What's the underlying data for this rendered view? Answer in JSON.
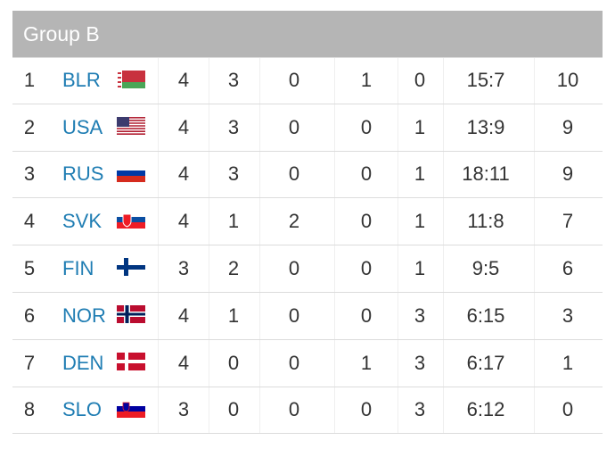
{
  "table": {
    "title": "Group B",
    "rows": [
      [
        1,
        "BLR",
        4,
        3,
        0,
        1,
        0,
        "15:7",
        10
      ],
      [
        2,
        "USA",
        4,
        3,
        0,
        0,
        1,
        "13:9",
        9
      ],
      [
        3,
        "RUS",
        4,
        3,
        0,
        0,
        1,
        "18:11",
        9
      ],
      [
        4,
        "SVK",
        4,
        1,
        2,
        0,
        1,
        "11:8",
        7
      ],
      [
        5,
        "FIN",
        3,
        2,
        0,
        0,
        1,
        "9:5",
        6
      ],
      [
        6,
        "NOR",
        4,
        1,
        0,
        0,
        3,
        "6:15",
        3
      ],
      [
        7,
        "DEN",
        4,
        0,
        0,
        1,
        3,
        "6:17",
        1
      ],
      [
        8,
        "SLO",
        3,
        0,
        0,
        0,
        3,
        "6:12",
        0
      ]
    ]
  }
}
